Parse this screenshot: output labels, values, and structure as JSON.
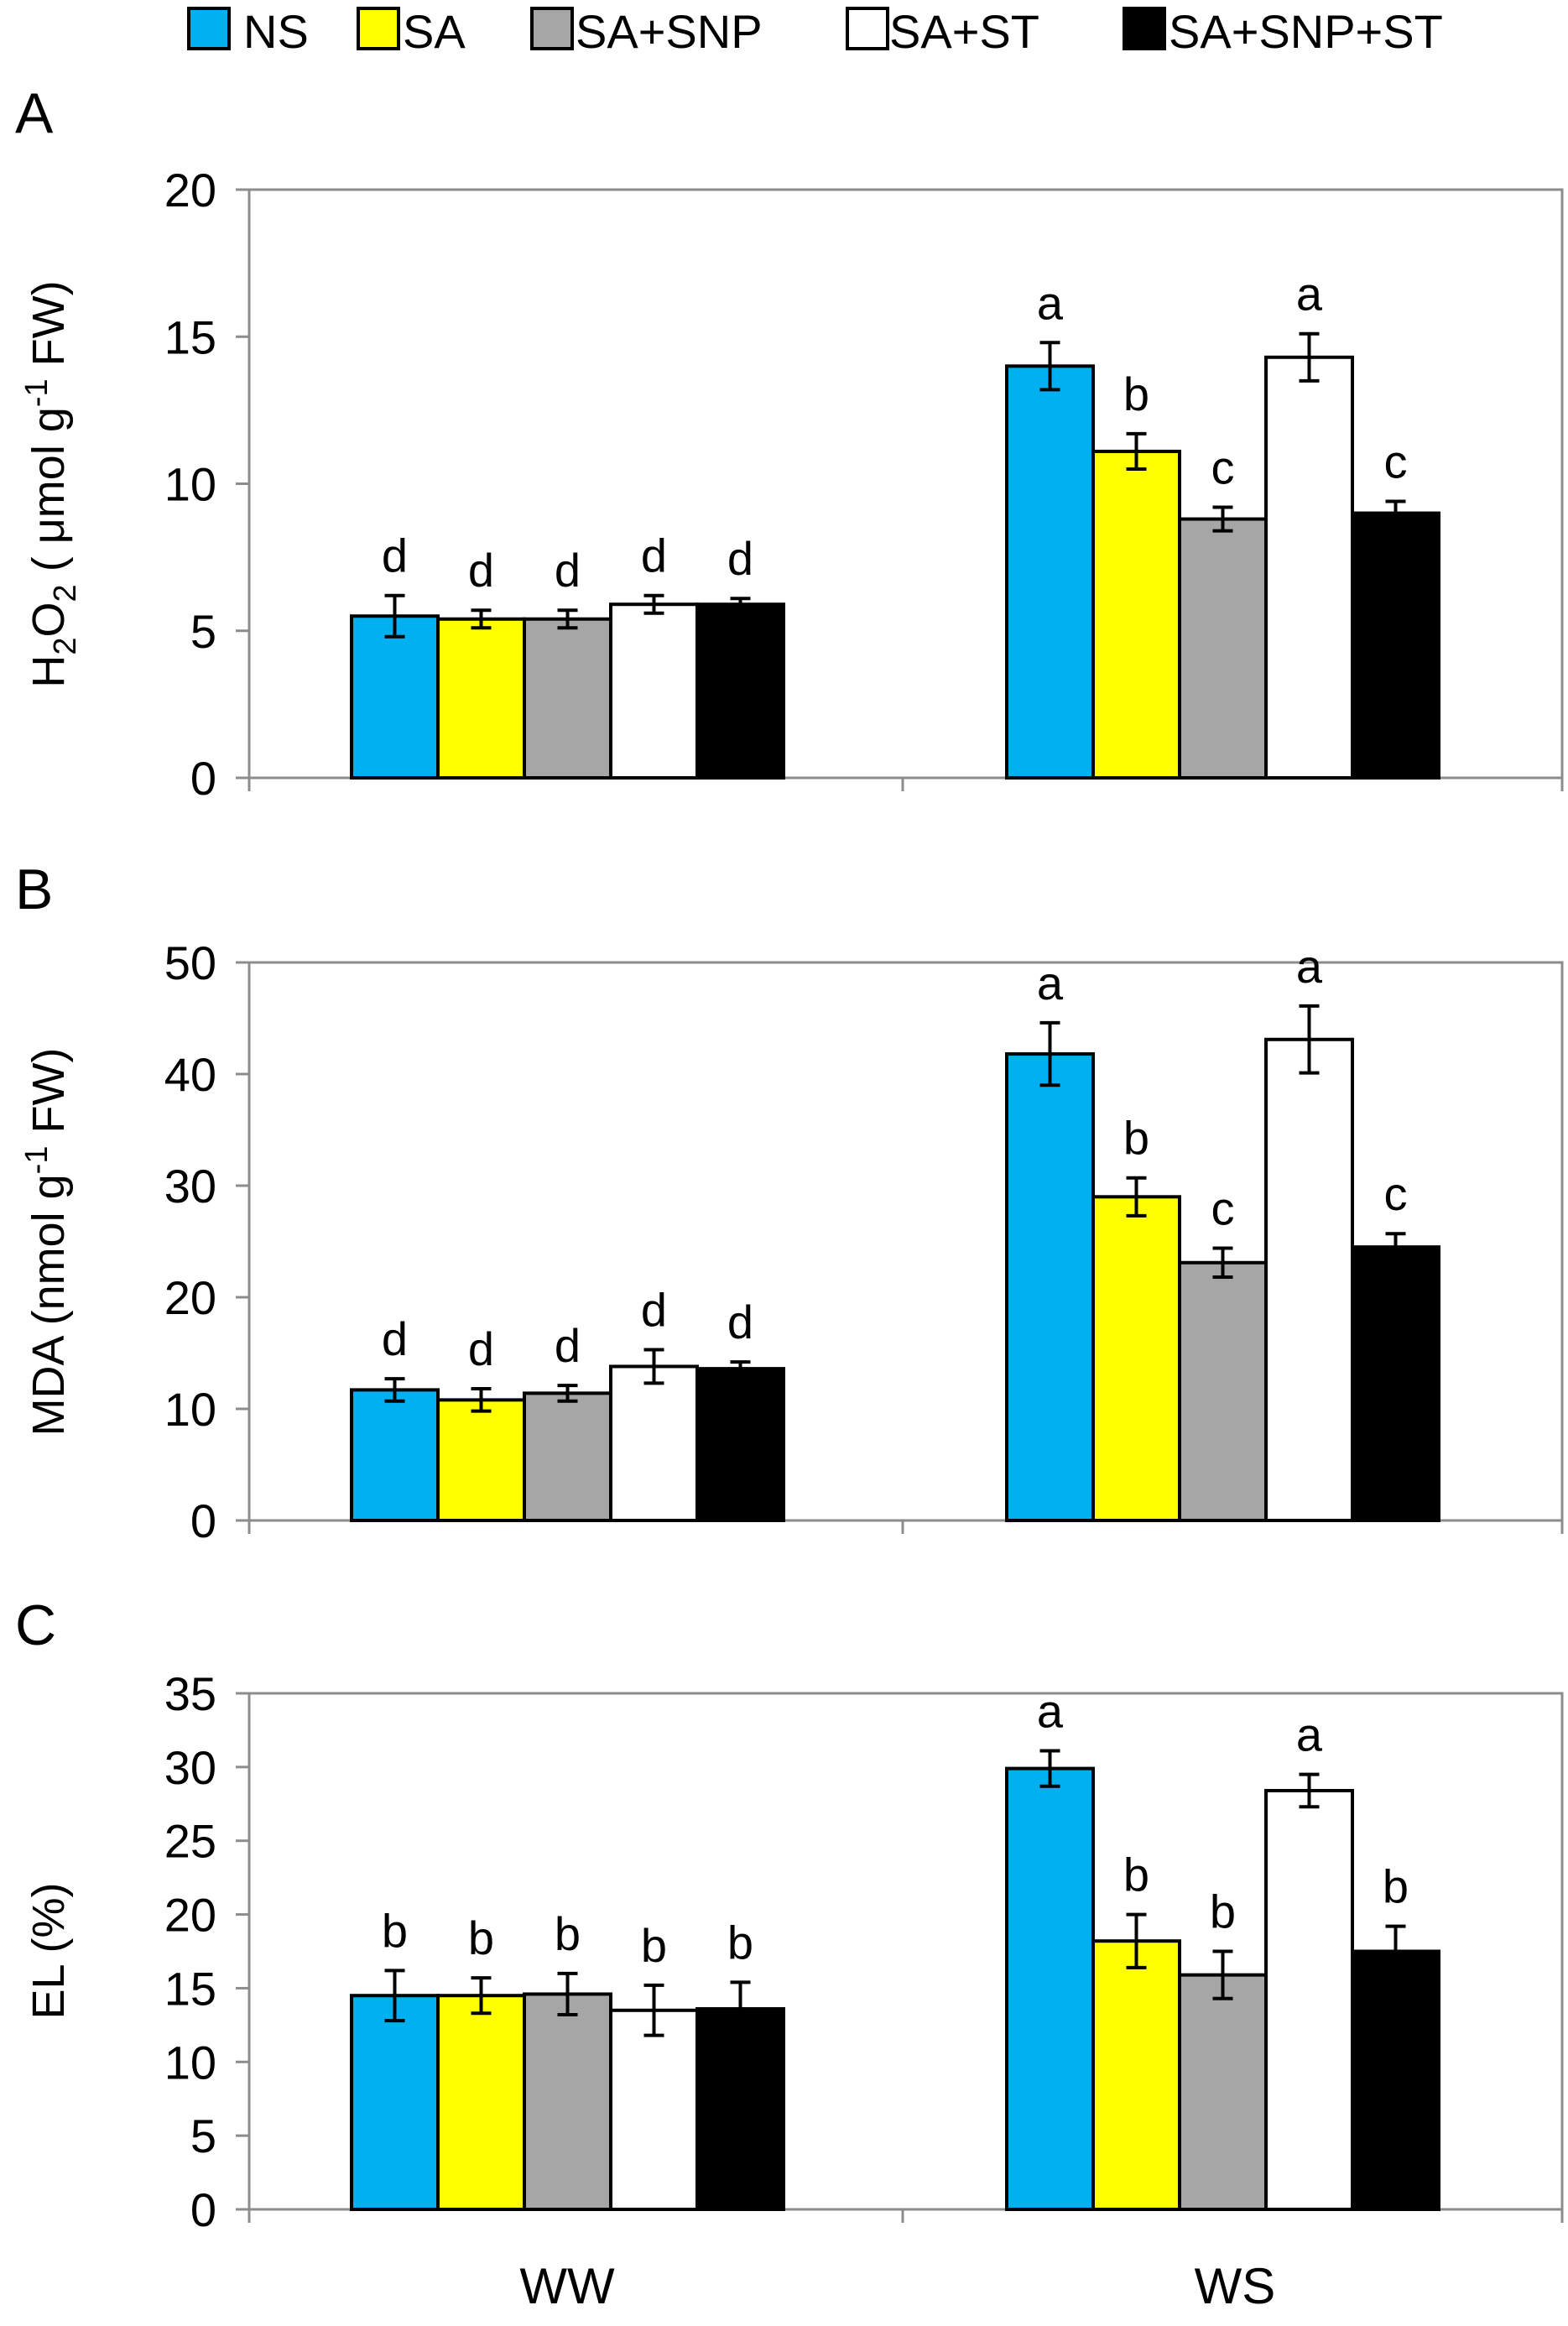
{
  "legend": [
    {
      "name": "NS",
      "color": "#00b0f0"
    },
    {
      "name": "SA",
      "color": "#ffff00"
    },
    {
      "name": "SA+SNP",
      "color": "#a6a6a6"
    },
    {
      "name": "SA+ST",
      "color": "#ffffff"
    },
    {
      "name": "SA+SNP+ST",
      "color": "#000000"
    }
  ],
  "chart_data": [
    {
      "type": "bar",
      "panel_label": "A",
      "ylabel": {
        "main": "H",
        "sub1": "2",
        "mid": "O",
        "sub2": "2",
        "rest": " ( μmol g",
        "sup": "-1",
        "end": " FW)"
      },
      "ylim": [
        0,
        20
      ],
      "yticks": [
        0,
        5,
        10,
        15,
        20
      ],
      "categories": [
        "WW",
        "WS"
      ],
      "series": [
        {
          "name": "NS",
          "values": [
            5.5,
            14.0
          ],
          "errors": [
            0.7,
            0.8
          ],
          "letters": [
            "d",
            "a"
          ]
        },
        {
          "name": "SA",
          "values": [
            5.4,
            11.1
          ],
          "errors": [
            0.3,
            0.6
          ],
          "letters": [
            "d",
            "b"
          ]
        },
        {
          "name": "SA+SNP",
          "values": [
            5.4,
            8.8
          ],
          "errors": [
            0.3,
            0.4
          ],
          "letters": [
            "d",
            "c"
          ]
        },
        {
          "name": "SA+ST",
          "values": [
            5.9,
            14.3
          ],
          "errors": [
            0.3,
            0.8
          ],
          "letters": [
            "d",
            "a"
          ]
        },
        {
          "name": "SA+SNP+ST",
          "values": [
            5.9,
            9.0
          ],
          "errors": [
            0.2,
            0.4
          ],
          "letters": [
            "d",
            "c"
          ]
        }
      ]
    },
    {
      "type": "bar",
      "panel_label": "B",
      "ylabel": {
        "main": "MDA (nmol g",
        "sup": "-1",
        "end": " FW)"
      },
      "ylim": [
        0,
        50
      ],
      "yticks": [
        0,
        10,
        20,
        30,
        40,
        50
      ],
      "categories": [
        "WW",
        "WS"
      ],
      "series": [
        {
          "name": "NS",
          "values": [
            11.7,
            41.8
          ],
          "errors": [
            1.0,
            2.8
          ],
          "letters": [
            "d",
            "a"
          ]
        },
        {
          "name": "SA",
          "values": [
            10.8,
            29.0
          ],
          "errors": [
            1.0,
            1.7
          ],
          "letters": [
            "d",
            "b"
          ]
        },
        {
          "name": "SA+SNP",
          "values": [
            11.4,
            23.1
          ],
          "errors": [
            0.7,
            1.3
          ],
          "letters": [
            "d",
            "c"
          ]
        },
        {
          "name": "SA+ST",
          "values": [
            13.8,
            43.1
          ],
          "errors": [
            1.5,
            3.0
          ],
          "letters": [
            "d",
            "a"
          ]
        },
        {
          "name": "SA+SNP+ST",
          "values": [
            13.6,
            24.5
          ],
          "errors": [
            0.6,
            1.2
          ],
          "letters": [
            "d",
            "c"
          ]
        }
      ]
    },
    {
      "type": "bar",
      "panel_label": "C",
      "ylabel": {
        "main": "EL (%)"
      },
      "ylim": [
        0,
        35
      ],
      "yticks": [
        0,
        5,
        10,
        15,
        20,
        25,
        30,
        35
      ],
      "categories": [
        "WW",
        "WS"
      ],
      "series": [
        {
          "name": "NS",
          "values": [
            14.5,
            29.9
          ],
          "errors": [
            1.7,
            1.2
          ],
          "letters": [
            "b",
            "a"
          ]
        },
        {
          "name": "SA",
          "values": [
            14.5,
            18.2
          ],
          "errors": [
            1.2,
            1.8
          ],
          "letters": [
            "b",
            "b"
          ]
        },
        {
          "name": "SA+SNP",
          "values": [
            14.6,
            15.9
          ],
          "errors": [
            1.4,
            1.6
          ],
          "letters": [
            "b",
            "b"
          ]
        },
        {
          "name": "SA+ST",
          "values": [
            13.5,
            28.4
          ],
          "errors": [
            1.7,
            1.1
          ],
          "letters": [
            "b",
            "a"
          ]
        },
        {
          "name": "SA+SNP+ST",
          "values": [
            13.6,
            17.5
          ],
          "errors": [
            1.8,
            1.7
          ],
          "letters": [
            "b",
            "b"
          ]
        }
      ]
    }
  ],
  "x_categories": [
    "WW",
    "WS"
  ]
}
